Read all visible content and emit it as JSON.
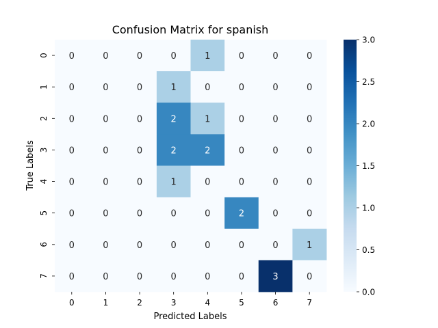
{
  "chart_data": {
    "type": "heatmap",
    "title": "Confusion Matrix for spanish",
    "xlabel": "Predicted Labels",
    "ylabel": "True Labels",
    "x_categories": [
      "0",
      "1",
      "2",
      "3",
      "4",
      "5",
      "6",
      "7"
    ],
    "y_categories": [
      "0",
      "1",
      "2",
      "3",
      "4",
      "5",
      "6",
      "7"
    ],
    "values": [
      [
        0,
        0,
        0,
        0,
        1,
        0,
        0,
        0
      ],
      [
        0,
        0,
        0,
        1,
        0,
        0,
        0,
        0
      ],
      [
        0,
        0,
        0,
        2,
        1,
        0,
        0,
        0
      ],
      [
        0,
        0,
        0,
        2,
        2,
        0,
        0,
        0
      ],
      [
        0,
        0,
        0,
        1,
        0,
        0,
        0,
        0
      ],
      [
        0,
        0,
        0,
        0,
        0,
        2,
        0,
        0
      ],
      [
        0,
        0,
        0,
        0,
        0,
        0,
        0,
        1
      ],
      [
        0,
        0,
        0,
        0,
        0,
        0,
        3,
        0
      ]
    ],
    "colorbar": {
      "range": [
        0,
        3
      ],
      "ticks": [
        "0.0",
        "0.5",
        "1.0",
        "1.5",
        "2.0",
        "2.5",
        "3.0"
      ],
      "colormap": "Blues"
    },
    "colors": {
      "low": "#f7fbff",
      "high": "#08306b"
    }
  }
}
